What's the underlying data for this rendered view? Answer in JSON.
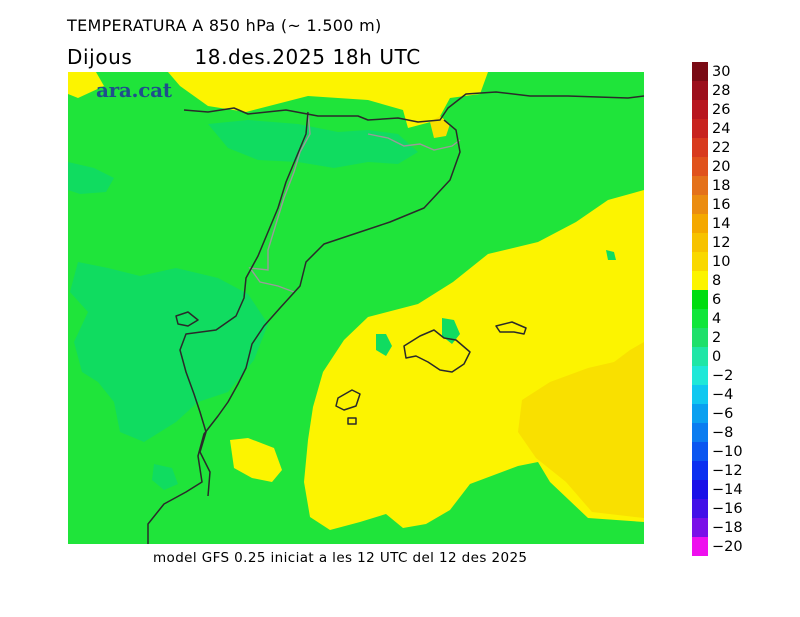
{
  "title": "TEMPERATURA A 850 hPa (~ 1.500 m)",
  "date": {
    "weekday": "Dijous",
    "datetime": "18.des.2025 18h UTC"
  },
  "brand": "ara.cat",
  "footer": "model GFS 0.25 iniciat a les 12 UTC del 12 des 2025",
  "legend": {
    "labels": [
      "30",
      "28",
      "26",
      "24",
      "22",
      "20",
      "18",
      "16",
      "14",
      "12",
      "10",
      "8",
      "6",
      "4",
      "2",
      "0",
      "−2",
      "−4",
      "−6",
      "−8",
      "−10",
      "−12",
      "−14",
      "−16",
      "−18",
      "−20"
    ],
    "colors": [
      "#7a0a14",
      "#9c0f1c",
      "#b8161f",
      "#c8231f",
      "#d83a1e",
      "#e0521c",
      "#e4711a",
      "#eb8c10",
      "#f4a800",
      "#f7c200",
      "#f9d800",
      "#fcf400",
      "#00dd10",
      "#10e63a",
      "#1fe06a",
      "#20e6a6",
      "#1fe8d8",
      "#10c8f0",
      "#0aa0f0",
      "#0a7cf0",
      "#0a56f0",
      "#0a30f0",
      "#1a10e8",
      "#4210e8",
      "#7a10e8",
      "#ee10ee"
    ],
    "colors_meaning": "legend swatches from warm (top) to cold (bottom)"
  },
  "map_colors": {
    "band_6_8": "#fcf400",
    "band_8_10": "#f9e000",
    "band_4_6": "#1fe43a",
    "band_2_4": "#10dc60",
    "coast_line": "#2a2a2a",
    "border_line": "#9a9a9a"
  }
}
